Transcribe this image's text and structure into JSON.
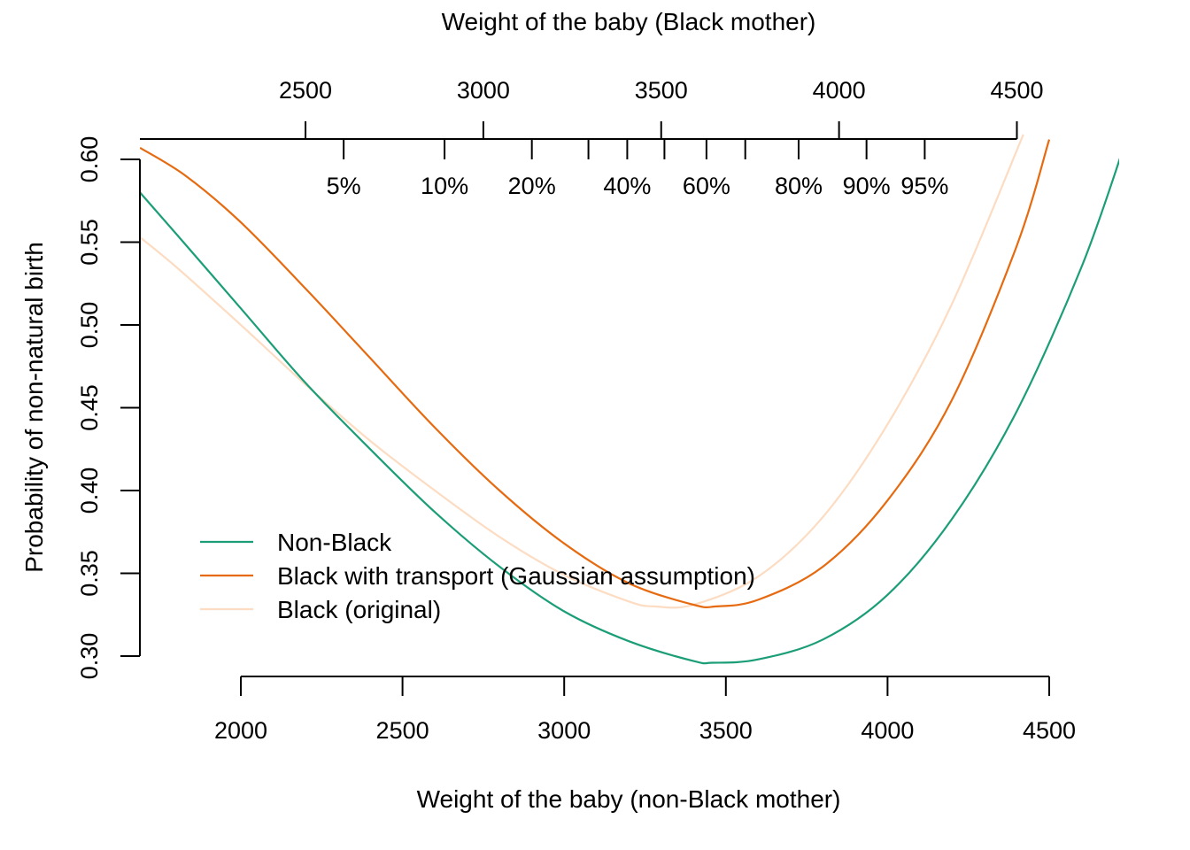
{
  "chart_data": {
    "type": "line",
    "title": "",
    "xlabel": "Weight of the baby (non-Black mother)",
    "ylabel": "Probability of non-natural birth",
    "top_xlabel": "Weight of the baby (Black mother)",
    "xlim": [
      1688,
      4730
    ],
    "ylim": [
      0.295,
      0.615
    ],
    "grid": false,
    "legend_position": "bottom-left",
    "bottom_ticks": [
      "2000",
      "2500",
      "3000",
      "3500",
      "4000",
      "4500"
    ],
    "bottom_tick_values": [
      2000,
      2500,
      3000,
      3500,
      4000,
      4500
    ],
    "left_ticks": [
      "0.30",
      "0.35",
      "0.40",
      "0.45",
      "0.50",
      "0.55",
      "0.60"
    ],
    "left_tick_values": [
      0.3,
      0.35,
      0.4,
      0.45,
      0.5,
      0.55,
      0.6
    ],
    "top_ticks": [
      "2500",
      "3000",
      "3500",
      "4000",
      "4500"
    ],
    "top_tick_positions": [
      2200,
      2750,
      3300,
      3850,
      4400
    ],
    "percentile_ticks": [
      {
        "label": "5%",
        "x": 2318
      },
      {
        "label": "10%",
        "x": 2630
      },
      {
        "label": "20%",
        "x": 2900
      },
      {
        "label": "",
        "x": 3075
      },
      {
        "label": "40%",
        "x": 3195
      },
      {
        "label": "",
        "x": 3310
      },
      {
        "label": "60%",
        "x": 3440
      },
      {
        "label": "",
        "x": 3560
      },
      {
        "label": "80%",
        "x": 3725
      },
      {
        "label": "90%",
        "x": 3935
      },
      {
        "label": "95%",
        "x": 4115
      }
    ],
    "series": [
      {
        "name": "Non-Black",
        "color": "#1b9e77",
        "x": [
          1688,
          1800,
          2000,
          2200,
          2400,
          2600,
          2800,
          3000,
          3200,
          3400,
          3460,
          3600,
          3800,
          4000,
          4200,
          4400,
          4600,
          4730
        ],
        "y": [
          0.58,
          0.555,
          0.51,
          0.465,
          0.425,
          0.387,
          0.354,
          0.327,
          0.309,
          0.297,
          0.296,
          0.298,
          0.31,
          0.337,
          0.383,
          0.448,
          0.535,
          0.607
        ]
      },
      {
        "name": "Black with transport (Gaussian assumption)",
        "color": "#e66a10",
        "x": [
          1688,
          1830,
          2000,
          2200,
          2400,
          2600,
          2800,
          3000,
          3200,
          3400,
          3470,
          3600,
          3800,
          4000,
          4200,
          4400,
          4500
        ],
        "y": [
          0.607,
          0.59,
          0.562,
          0.522,
          0.48,
          0.438,
          0.4,
          0.368,
          0.344,
          0.331,
          0.33,
          0.334,
          0.354,
          0.394,
          0.455,
          0.548,
          0.612
        ]
      },
      {
        "name": "Black (original)",
        "color": "#fcdcc2",
        "x": [
          1688,
          1800,
          2000,
          2200,
          2400,
          2600,
          2800,
          3000,
          3200,
          3280,
          3400,
          3600,
          3800,
          4000,
          4200,
          4420
        ],
        "y": [
          0.553,
          0.535,
          0.5,
          0.464,
          0.43,
          0.4,
          0.372,
          0.349,
          0.333,
          0.33,
          0.331,
          0.348,
          0.384,
          0.44,
          0.513,
          0.615
        ]
      }
    ]
  }
}
